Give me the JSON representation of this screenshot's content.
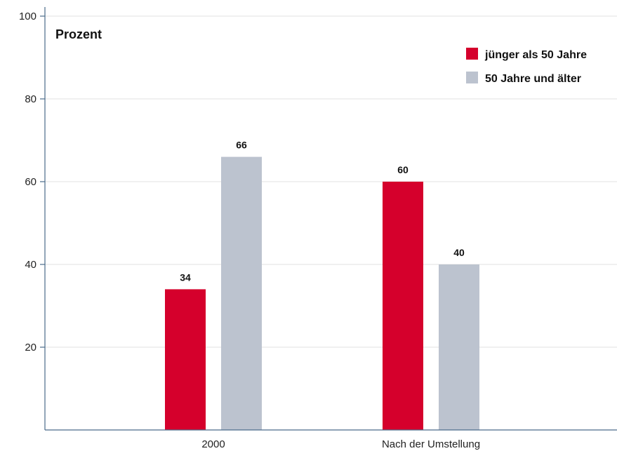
{
  "chart_data": {
    "type": "bar",
    "unit_label": "Prozent",
    "categories": [
      "2000",
      "Nach der Umstellung"
    ],
    "series": [
      {
        "name": "jünger als 50 Jahre",
        "values": [
          34,
          60
        ],
        "color": "#d5002c"
      },
      {
        "name": "50 Jahre und älter",
        "values": [
          66,
          40
        ],
        "color": "#bcc3cf"
      }
    ],
    "ylim": [
      0,
      100
    ],
    "yticks": [
      20,
      40,
      60,
      80,
      100
    ],
    "grid": true,
    "legend_position": "top-right",
    "colors": {
      "grid": "#e2e2e2",
      "axis": "#4a6b8a"
    }
  }
}
